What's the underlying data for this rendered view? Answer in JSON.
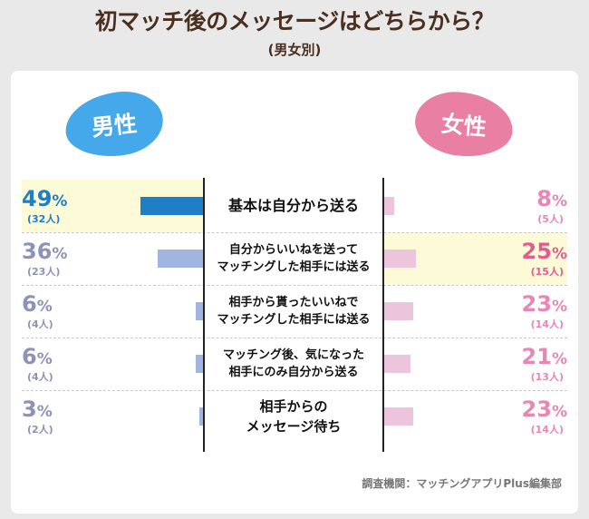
{
  "title": "初マッチ後のメッセージはどちらから？",
  "subtitle": "(男女別)",
  "source": "調査機関：マッチングアプリPlus編集部",
  "colors": {
    "male_highlight": "#1f7fc6",
    "male_bar": "#a2b4e0",
    "male_text": "#8c93b5",
    "female_highlight": "#e45b92",
    "female_bar": "#ecc4dc",
    "female_text": "#e887b6",
    "row_highlight": "#fdfad8"
  },
  "chart_data": {
    "type": "bar",
    "layout": "butterfly",
    "categories": [
      "基本は自分から送る",
      "自分からいいねを送って マッチングした相手には送る",
      "相手から貰ったいいねで マッチングした相手には送る",
      "マッチング後、気になった 相手にのみ自分から送る",
      "相手からの メッセージ待ち"
    ],
    "category_lines": [
      [
        "基本は自分から送る"
      ],
      [
        "自分からいいねを送って",
        "マッチングした相手には送る"
      ],
      [
        "相手から貰ったいいねで",
        "マッチングした相手には送る"
      ],
      [
        "マッチング後、気になった",
        "相手にのみ自分から送る"
      ],
      [
        "相手からの",
        "メッセージ待ち"
      ]
    ],
    "series": [
      {
        "name": "男性",
        "values": [
          49,
          36,
          6,
          6,
          3
        ],
        "counts": [
          "(32人)",
          "(23人)",
          "(4人)",
          "(4人)",
          "(2人)"
        ],
        "highlight_index": 0
      },
      {
        "name": "女性",
        "values": [
          8,
          25,
          23,
          21,
          23
        ],
        "counts": [
          "(5人)",
          "(15人)",
          "(14人)",
          "(13人)",
          "(14人)"
        ],
        "highlight_index": 1
      }
    ],
    "unit": "%"
  }
}
